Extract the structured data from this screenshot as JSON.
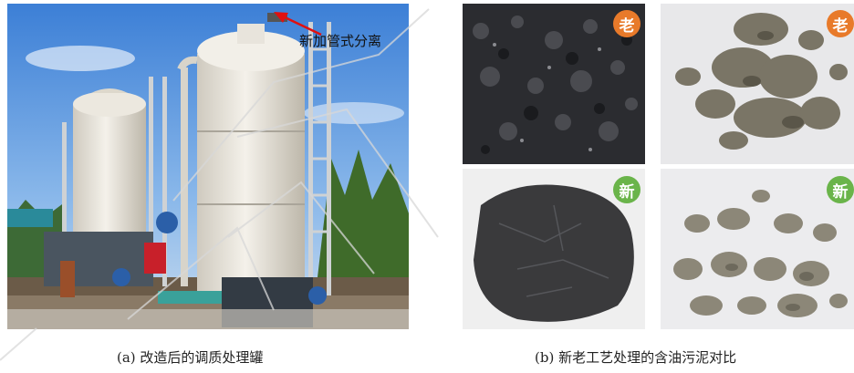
{
  "figure_a": {
    "annotation": "新加管式分离",
    "caption": "(a) 改造后的调质处理罐"
  },
  "figure_b": {
    "tags": {
      "old_left": "老",
      "old_right": "老",
      "new_left": "新",
      "new_right": "新"
    },
    "caption": "(b) 新老工艺处理的含油污泥对比"
  },
  "colors": {
    "old_tag": "#e87a2a",
    "new_tag": "#6ab44a",
    "arrow": "#e01010"
  }
}
